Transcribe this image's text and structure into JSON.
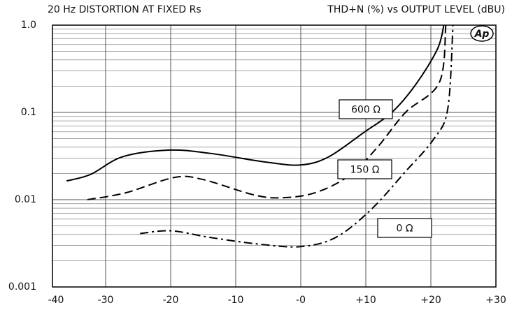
{
  "chart_data": {
    "type": "line",
    "title": "20 Hz DISTORTION AT FIXED Rs",
    "subtitle": "THD+N (%) vs OUTPUT LEVEL (dBU)",
    "logo": "Ap",
    "y_log": true,
    "grid": true,
    "minor_grid": true,
    "xlim": [
      -40,
      30
    ],
    "xticks": [
      -40,
      -30,
      -20,
      -10,
      {
        "value": 0,
        "label": "-0"
      },
      {
        "value": 10,
        "label": "+10"
      },
      {
        "value": 20,
        "label": "+20"
      },
      {
        "value": 30,
        "label": "+30"
      }
    ],
    "ylim": [
      0.001,
      1
    ],
    "yticks": [
      0.001,
      0.01,
      0.1,
      {
        "value": 1,
        "label": "1.0"
      }
    ],
    "series": [
      {
        "name": "600 Ω",
        "color": "#000000",
        "dash": "solid",
        "x": [
          -36,
          -32.3,
          -27.4,
          -20.4,
          -14,
          -5.4,
          0,
          4.3,
          9.7,
          14,
          17.7,
          21,
          22
        ],
        "values": [
          0.0164,
          0.0195,
          0.031,
          0.037,
          0.034,
          0.027,
          0.025,
          0.031,
          0.059,
          0.1,
          0.21,
          0.53,
          1.0
        ]
      },
      {
        "name": "150 Ω",
        "color": "#000000",
        "dash": "dash",
        "x": [
          -32.8,
          -26.9,
          -19.4,
          -15,
          -7.5,
          -3.2,
          2.2,
          7.5,
          11.8,
          16.1,
          21.3,
          22.3
        ],
        "values": [
          0.01,
          0.012,
          0.018,
          0.017,
          0.0115,
          0.0105,
          0.012,
          0.019,
          0.04,
          0.1,
          0.22,
          1.0
        ]
      },
      {
        "name": "0 Ω",
        "color": "#000000",
        "dash": "dashdot",
        "x": [
          -24.7,
          -19.9,
          -14,
          -6.5,
          0,
          5.4,
          10.8,
          16.1,
          20.4,
          22.6,
          23.4
        ],
        "values": [
          0.0041,
          0.0044,
          0.0037,
          0.0031,
          0.0029,
          0.0037,
          0.0077,
          0.021,
          0.049,
          0.11,
          1.0
        ]
      }
    ]
  }
}
